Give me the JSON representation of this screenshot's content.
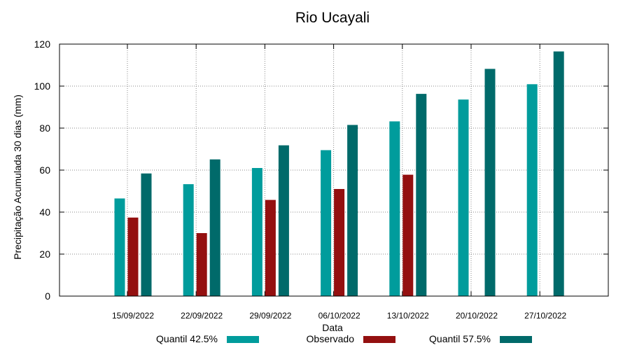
{
  "chart_data": {
    "type": "bar",
    "title": "Rio Ucayali",
    "xlabel": "Data",
    "ylabel": "Precipitação Acumulada 30 dias (mm)",
    "ylim": [
      0,
      120
    ],
    "yticks": [
      0,
      20,
      40,
      60,
      80,
      100,
      120
    ],
    "grid": true,
    "legend_position": "bottom",
    "categories": [
      "15/09/2022",
      "22/09/2022",
      "29/09/2022",
      "06/10/2022",
      "13/10/2022",
      "20/10/2022",
      "27/10/2022"
    ],
    "series": [
      {
        "name": "Quantil 42.5%",
        "color": "#009c9c",
        "values": [
          46.5,
          53.3,
          61.0,
          69.5,
          83.2,
          93.6,
          100.9
        ]
      },
      {
        "name": "Observado",
        "color": "#941010",
        "values": [
          37.4,
          30.0,
          45.8,
          51.0,
          57.8,
          null,
          null
        ]
      },
      {
        "name": "Quantil 57.5%",
        "color": "#006a6a",
        "values": [
          58.4,
          65.1,
          71.8,
          81.5,
          96.3,
          108.2,
          116.5
        ]
      }
    ]
  }
}
